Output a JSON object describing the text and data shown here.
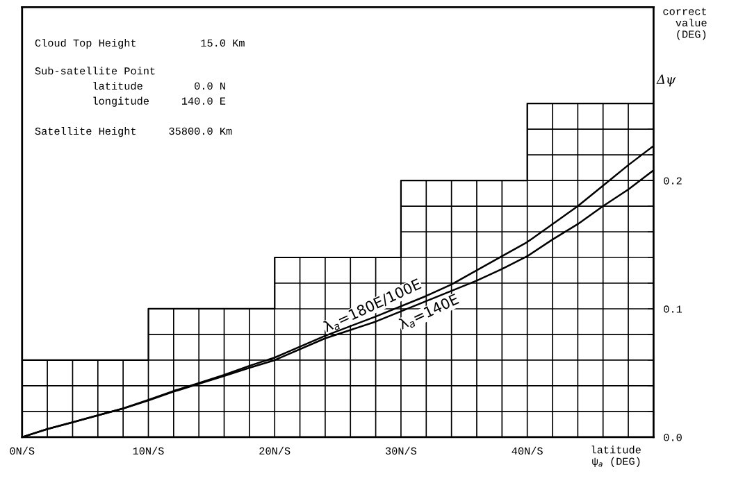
{
  "chart_data": {
    "type": "line",
    "xlabel": "latitude\nψ$_{a}$ (DEG)",
    "ylabel": "correct\nvalue\n(DEG)",
    "annotations": [
      "Cloud Top Height          15.0 Km",
      "Sub-satellite Point",
      "         latitude        0.0 N",
      "         longitude     140.0 E",
      "Satellite Height     35800.0 Km",
      "Δψ"
    ],
    "xlim": [
      0,
      50
    ],
    "xticks": [
      {
        "value": 0,
        "label": "0N/S"
      },
      {
        "value": 2,
        "label": null
      },
      {
        "value": 4,
        "label": null
      },
      {
        "value": 6,
        "label": null
      },
      {
        "value": 8,
        "label": null
      },
      {
        "value": 10,
        "label": "10N/S"
      },
      {
        "value": 12,
        "label": null
      },
      {
        "value": 14,
        "label": null
      },
      {
        "value": 16,
        "label": null
      },
      {
        "value": 18,
        "label": null
      },
      {
        "value": 20,
        "label": "20N/S"
      },
      {
        "value": 22,
        "label": null
      },
      {
        "value": 24,
        "label": null
      },
      {
        "value": 26,
        "label": null
      },
      {
        "value": 28,
        "label": null
      },
      {
        "value": 30,
        "label": "30N/S"
      },
      {
        "value": 32,
        "label": null
      },
      {
        "value": 34,
        "label": null
      },
      {
        "value": 36,
        "label": null
      },
      {
        "value": 38,
        "label": null
      },
      {
        "value": 40,
        "label": "40N/S"
      },
      {
        "value": 42,
        "label": null
      },
      {
        "value": 44,
        "label": null
      },
      {
        "value": 46,
        "label": null
      },
      {
        "value": 48,
        "label": null
      }
    ],
    "ylim": [
      0,
      0.335
    ],
    "yticks": [
      {
        "value": 0,
        "label": "0.0"
      },
      {
        "value": 0.02,
        "label": null
      },
      {
        "value": 0.04,
        "label": null
      },
      {
        "value": 0.06,
        "label": null
      },
      {
        "value": 0.08,
        "label": null
      },
      {
        "value": 0.1,
        "label": "0.1"
      },
      {
        "value": 0.12,
        "label": null
      },
      {
        "value": 0.14,
        "label": null
      },
      {
        "value": 0.16,
        "label": null
      },
      {
        "value": 0.18,
        "label": null
      },
      {
        "value": 0.2,
        "label": "0.2"
      },
      {
        "value": 0.22,
        "label": null
      },
      {
        "value": 0.24,
        "label": null
      },
      {
        "value": 0.26,
        "label": null
      }
    ],
    "grid": true,
    "series": [
      {
        "type": "step",
        "color": "#000000",
        "x": [
          0,
          10,
          20,
          30,
          40,
          50
        ],
        "values": [
          0.06,
          0.1,
          0.14,
          0.2,
          0.26,
          0.26
        ]
      },
      {
        "name": "λ$_{a}$=180E/100E",
        "color": "#000000",
        "x": [
          0,
          2,
          4,
          6,
          8,
          10,
          12,
          14,
          16,
          18,
          20,
          24,
          28,
          32,
          34,
          38,
          40,
          42,
          44,
          46,
          48,
          50
        ],
        "values": [
          0,
          0.0063,
          0.0116,
          0.017,
          0.0224,
          0.029,
          0.036,
          0.0422,
          0.0485,
          0.0556,
          0.062,
          0.079,
          0.094,
          0.11,
          0.119,
          0.141,
          0.152,
          0.166,
          0.18,
          0.196,
          0.212,
          0.227
        ]
      },
      {
        "name": "λ$_{a}$=140E",
        "color": "#000000",
        "x": [
          0,
          2,
          4,
          6,
          8,
          10,
          12,
          14,
          16,
          18,
          20,
          24,
          28,
          32,
          36,
          38,
          40,
          42,
          44,
          46,
          48,
          50
        ],
        "values": [
          0,
          0.0063,
          0.0116,
          0.017,
          0.0222,
          0.0285,
          0.0354,
          0.0416,
          0.0476,
          0.054,
          0.06,
          0.077,
          0.09,
          0.106,
          0.122,
          0.131,
          0.141,
          0.154,
          0.166,
          0.18,
          0.193,
          0.208
        ]
      }
    ]
  }
}
